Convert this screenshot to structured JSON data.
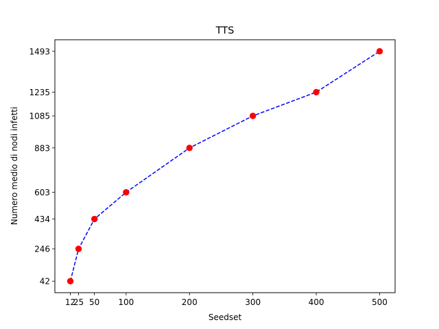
{
  "chart_data": {
    "type": "line",
    "title": "TTS",
    "xlabel": "Seedset",
    "ylabel": "Numero medio di nodi infetti",
    "x": [
      12,
      25,
      50,
      100,
      200,
      300,
      400,
      500
    ],
    "y": [
      42,
      246,
      434,
      603,
      883,
      1085,
      1235,
      1493
    ],
    "x_ticks": [
      12,
      25,
      50,
      100,
      200,
      300,
      400,
      500
    ],
    "y_ticks": [
      42,
      246,
      434,
      603,
      883,
      1085,
      1235,
      1493
    ],
    "xlim": [
      -12.4,
      524.4
    ],
    "ylim": [
      -30.55,
      1565.55
    ],
    "grid": false,
    "line_color": "#0000ff",
    "line_style": "dashed",
    "marker_color": "#ff0000",
    "marker": "circle"
  }
}
